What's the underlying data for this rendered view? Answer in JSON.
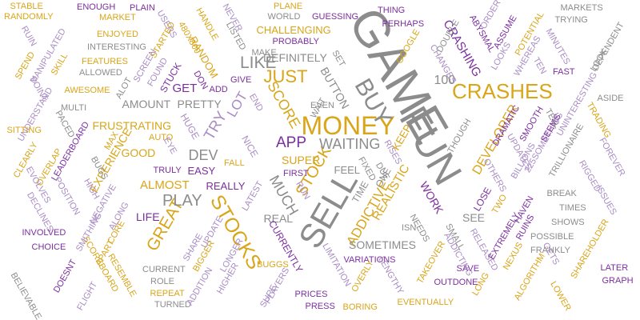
{
  "palette": {
    "gold": "#d9a519",
    "purple": "#7b2f9e",
    "gray": "#8c8c8c",
    "lavender": "#a98cc4"
  },
  "words": [
    {
      "text": "GAME",
      "color": "gray"
    },
    {
      "text": "FUN",
      "color": "gray"
    },
    {
      "text": "SELL",
      "color": "gray"
    },
    {
      "text": "MONEY",
      "color": "gold"
    },
    {
      "text": "CRASHES",
      "color": "gold"
    },
    {
      "text": "BUY",
      "color": "gray"
    },
    {
      "text": "JUST",
      "color": "gold"
    },
    {
      "text": "STOCKS",
      "color": "gold"
    },
    {
      "text": "STOCK",
      "color": "gold"
    },
    {
      "text": "GREAT",
      "color": "gold"
    },
    {
      "text": "PLAY",
      "color": "gray"
    },
    {
      "text": "LIKE",
      "color": "gray"
    },
    {
      "text": "WAITING",
      "color": "gray"
    },
    {
      "text": "APP",
      "color": "purple"
    },
    {
      "text": "ADDICTIVE",
      "color": "gold"
    },
    {
      "text": "MUCH",
      "color": "gray"
    },
    {
      "text": "TRY",
      "color": "lavender"
    },
    {
      "text": "LOT",
      "color": "lavender"
    },
    {
      "text": "SCORE",
      "color": "gold"
    },
    {
      "text": "DEV",
      "color": "gray"
    },
    {
      "text": "100",
      "color": "gray"
    },
    {
      "text": "REALISTIC",
      "color": "gold"
    },
    {
      "text": "BUTTON",
      "color": "gray"
    },
    {
      "text": "DEFINITELY",
      "color": "gray"
    },
    {
      "text": "CRASHING",
      "color": "purple"
    },
    {
      "text": "DEVELOPER",
      "color": "gold"
    },
    {
      "text": "FRUSTRATING",
      "color": "gold"
    },
    {
      "text": "AMOUNT",
      "color": "gray"
    },
    {
      "text": "PRETTY",
      "color": "gray"
    },
    {
      "text": "ALMOST",
      "color": "gold"
    },
    {
      "text": "REALLY",
      "color": "purple"
    },
    {
      "text": "EASY",
      "color": "purple"
    },
    {
      "text": "SUPER",
      "color": "gold"
    },
    {
      "text": "GOOD",
      "color": "gold"
    },
    {
      "text": "KEEP",
      "color": "gold"
    },
    {
      "text": "WORK",
      "color": "purple"
    },
    {
      "text": "REAL",
      "color": "gray"
    },
    {
      "text": "LIFE",
      "color": "purple"
    },
    {
      "text": "SOMETIMES",
      "color": "gray"
    },
    {
      "text": "SEE",
      "color": "gray"
    },
    {
      "text": "GET",
      "color": "purple"
    },
    {
      "text": "CHALLENGING",
      "color": "gold"
    },
    {
      "text": "EXPERIENCE",
      "color": "gold"
    },
    {
      "text": "FEEL",
      "color": "gray"
    },
    {
      "text": "TIME",
      "color": "gray"
    },
    {
      "text": "ONE",
      "color": "gray"
    },
    {
      "text": "LOSE",
      "color": "purple"
    },
    {
      "text": "THOUGH",
      "color": "gray"
    },
    {
      "text": "CURRENTLY",
      "color": "purple"
    },
    {
      "text": "RANDOM",
      "color": "gold"
    },
    {
      "text": "STUCK",
      "color": "purple"
    },
    {
      "text": "HUGE",
      "color": "lavender"
    },
    {
      "text": "NICE",
      "color": "lavender"
    },
    {
      "text": "MARKETS",
      "color": "gray"
    },
    {
      "text": "TRYING",
      "color": "gray"
    },
    {
      "text": "FAST",
      "color": "purple"
    },
    {
      "text": "ASIDE",
      "color": "gray"
    },
    {
      "text": "TRADING",
      "color": "gold"
    },
    {
      "text": "STABLE",
      "color": "gold"
    },
    {
      "text": "RANDOMLY",
      "color": "gold"
    },
    {
      "text": "ENOUGH",
      "color": "purple"
    },
    {
      "text": "PLAIN",
      "color": "purple"
    },
    {
      "text": "MARKET",
      "color": "gold"
    },
    {
      "text": "ENJOYED",
      "color": "gold"
    },
    {
      "text": "INTERESTING",
      "color": "gray"
    },
    {
      "text": "FEATURES",
      "color": "gold"
    },
    {
      "text": "ALLOWED",
      "color": "gray"
    },
    {
      "text": "AWESOME",
      "color": "gold"
    },
    {
      "text": "SKILL",
      "color": "gold"
    },
    {
      "text": "SPEND",
      "color": "gold"
    },
    {
      "text": "POINT",
      "color": "lavender"
    },
    {
      "text": "UNDERSTAND",
      "color": "lavender"
    },
    {
      "text": "SITTING",
      "color": "gold"
    },
    {
      "text": "CLEARLY",
      "color": "gold"
    },
    {
      "text": "OVERLAP",
      "color": "gold"
    },
    {
      "text": "EVOLVES",
      "color": "lavender"
    },
    {
      "text": "LEADERBOARD",
      "color": "purple"
    },
    {
      "text": "DECLINES",
      "color": "lavender"
    },
    {
      "text": "POSITION",
      "color": "lavender"
    },
    {
      "text": "INVOLVED",
      "color": "purple"
    },
    {
      "text": "CHOICE",
      "color": "purple"
    },
    {
      "text": "BELIEVABLE",
      "color": "gray"
    },
    {
      "text": "DOESNT",
      "color": "purple"
    },
    {
      "text": "SCOREBOARD",
      "color": "gold"
    },
    {
      "text": "FLIGHT",
      "color": "lavender"
    },
    {
      "text": "RESEMBLE",
      "color": "gold"
    },
    {
      "text": "REPEAT",
      "color": "gold"
    },
    {
      "text": "TURNED",
      "color": "gray"
    },
    {
      "text": "CURRENT",
      "color": "gray"
    },
    {
      "text": "ROLE",
      "color": "gray"
    },
    {
      "text": "PRICES",
      "color": "purple"
    },
    {
      "text": "PRESS",
      "color": "purple"
    },
    {
      "text": "BORING",
      "color": "gold"
    },
    {
      "text": "EVENTUALLY",
      "color": "gold"
    },
    {
      "text": "OUTDONE",
      "color": "purple"
    },
    {
      "text": "SAVE",
      "color": "purple"
    },
    {
      "text": "TAKEOVER",
      "color": "gold"
    },
    {
      "text": "VARIATIONS",
      "color": "purple"
    },
    {
      "text": "LONG",
      "color": "gold"
    },
    {
      "text": "ALGORITHM",
      "color": "gold"
    },
    {
      "text": "NEXUS",
      "color": "gold"
    },
    {
      "text": "LOWER",
      "color": "gold"
    },
    {
      "text": "LATER",
      "color": "purple"
    },
    {
      "text": "GRAPH",
      "color": "purple"
    },
    {
      "text": "SHAREHOLDER",
      "color": "gold"
    },
    {
      "text": "GETS",
      "color": "lavender"
    },
    {
      "text": "POSSIBLE",
      "color": "gray"
    },
    {
      "text": "FRANKLY",
      "color": "gray"
    },
    {
      "text": "SHOWS",
      "color": "gray"
    },
    {
      "text": "TIMES",
      "color": "gray"
    },
    {
      "text": "BREAK",
      "color": "gray"
    },
    {
      "text": "ISSUES",
      "color": "lavender"
    },
    {
      "text": "RIGGED",
      "color": "lavender"
    },
    {
      "text": "FOREVER",
      "color": "lavender"
    },
    {
      "text": "TRILLIONAIRE",
      "color": "gray"
    },
    {
      "text": "225SOMETHING",
      "color": "lavender"
    },
    {
      "text": "BILLIONS",
      "color": "lavender"
    },
    {
      "text": "OTHERS",
      "color": "lavender"
    },
    {
      "text": "UPDATES",
      "color": "lavender"
    },
    {
      "text": "DRAMATIC",
      "color": "purple"
    },
    {
      "text": "SMOOTH",
      "color": "purple"
    },
    {
      "text": "SEEMS",
      "color": "purple"
    },
    {
      "text": "TELL",
      "color": "gray"
    },
    {
      "text": "UNINTERESTING",
      "color": "lavender"
    },
    {
      "text": "LOOK",
      "color": "gray"
    },
    {
      "text": "MINUTES",
      "color": "lavender"
    },
    {
      "text": "DEPENDENT",
      "color": "gray"
    },
    {
      "text": "POTENTIAL",
      "color": "gold"
    },
    {
      "text": "ORDER",
      "color": "lavender"
    },
    {
      "text": "ASSUME",
      "color": "purple"
    },
    {
      "text": "ABYSMAL",
      "color": "purple"
    },
    {
      "text": "LOOKS",
      "color": "lavender"
    },
    {
      "text": "WHEREAS",
      "color": "lavender"
    },
    {
      "text": "TEN",
      "color": "lavender"
    },
    {
      "text": "DOUBLE",
      "color": "gray"
    },
    {
      "text": "CHANGES",
      "color": "lavender"
    },
    {
      "text": "GOOGLE",
      "color": "gold"
    },
    {
      "text": "THING",
      "color": "purple"
    },
    {
      "text": "PERHAPS",
      "color": "purple"
    },
    {
      "text": "GUESSING",
      "color": "purple"
    },
    {
      "text": "WORLD",
      "color": "gray"
    },
    {
      "text": "PLANE",
      "color": "gold"
    },
    {
      "text": "PROBABLY",
      "color": "purple"
    },
    {
      "text": "SET",
      "color": "gray"
    },
    {
      "text": "MAKE",
      "color": "gray"
    },
    {
      "text": "LISTED",
      "color": "gray"
    },
    {
      "text": "NEVER",
      "color": "lavender"
    },
    {
      "text": "HANDLE",
      "color": "gold"
    },
    {
      "text": "480X800",
      "color": "gold"
    },
    {
      "text": "USERS",
      "color": "lavender"
    },
    {
      "text": "STARTED",
      "color": "gold"
    },
    {
      "text": "SCREEN",
      "color": "lavender"
    },
    {
      "text": "FOUND",
      "color": "lavender"
    },
    {
      "text": "DON",
      "color": "purple"
    },
    {
      "text": "GIVE",
      "color": "purple"
    },
    {
      "text": "ADD",
      "color": "purple"
    },
    {
      "text": "END",
      "color": "lavender"
    },
    {
      "text": "WAIT",
      "color": "gray"
    },
    {
      "text": "EVEN",
      "color": "gray"
    },
    {
      "text": "ALOT",
      "color": "gray"
    },
    {
      "text": "MULTI",
      "color": "gray"
    },
    {
      "text": "PACED",
      "color": "gray"
    },
    {
      "text": "HIGH",
      "color": "lavender"
    },
    {
      "text": "MANIPULATED",
      "color": "lavender"
    },
    {
      "text": "RUIN",
      "color": "lavender"
    },
    {
      "text": "AUTO",
      "color": "gold"
    },
    {
      "text": "MAX",
      "color": "gold"
    },
    {
      "text": "BUGS",
      "color": "gray"
    },
    {
      "text": "EYE",
      "color": "lavender"
    },
    {
      "text": "TRULY",
      "color": "purple"
    },
    {
      "text": "FALL",
      "color": "gold"
    },
    {
      "text": "FIRST",
      "color": "purple"
    },
    {
      "text": "LATEST",
      "color": "lavender"
    },
    {
      "text": "RUN",
      "color": "lavender"
    },
    {
      "text": "FIXED",
      "color": "gray"
    },
    {
      "text": "DUE",
      "color": "gray"
    },
    {
      "text": "RISES",
      "color": "lavender"
    },
    {
      "text": "ISN",
      "color": "gray"
    },
    {
      "text": "NEEDS",
      "color": "gray"
    },
    {
      "text": "SMALL",
      "color": "gray"
    },
    {
      "text": "ADDICTING",
      "color": "lavender"
    },
    {
      "text": "RELEASED",
      "color": "lavender"
    },
    {
      "text": "TWO",
      "color": "gold"
    },
    {
      "text": "HAVEN",
      "color": "purple"
    },
    {
      "text": "EXTREMELY",
      "color": "purple"
    },
    {
      "text": "RUINS",
      "color": "purple"
    },
    {
      "text": "LIMITATION",
      "color": "lavender"
    },
    {
      "text": "LENGTHY",
      "color": "lavender"
    },
    {
      "text": "OVERLY",
      "color": "gold"
    },
    {
      "text": "SURE",
      "color": "lavender"
    },
    {
      "text": "PLAYERS",
      "color": "lavender"
    },
    {
      "text": "BUGGS",
      "color": "gold"
    },
    {
      "text": "HIGHER",
      "color": "lavender"
    },
    {
      "text": "LONGER",
      "color": "lavender"
    },
    {
      "text": "BIGGER",
      "color": "gold"
    },
    {
      "text": "UPDATE",
      "color": "lavender"
    },
    {
      "text": "ADDITION",
      "color": "lavender"
    },
    {
      "text": "SHARE",
      "color": "lavender"
    },
    {
      "text": "SMITHING",
      "color": "lavender"
    },
    {
      "text": "APART",
      "color": "gold"
    },
    {
      "text": "CORE",
      "color": "gold"
    },
    {
      "text": "ALONG",
      "color": "lavender"
    },
    {
      "text": "NEGATIVE",
      "color": "lavender"
    }
  ]
}
